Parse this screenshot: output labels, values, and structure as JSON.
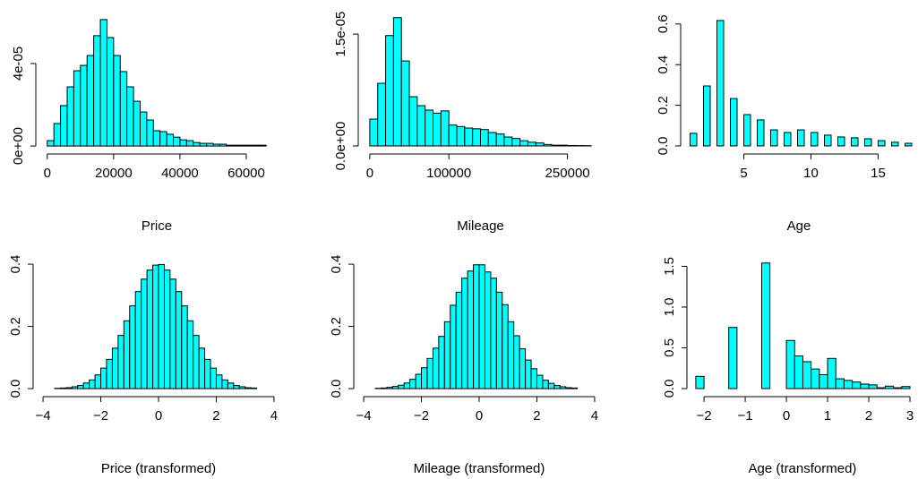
{
  "chart_data": [
    {
      "type": "histogram",
      "xlabel": "Price",
      "color": "#00ffff",
      "bins": [
        0,
        2000,
        4000,
        6000,
        8000,
        10000,
        12000,
        14000,
        16000,
        18000,
        20000,
        22000,
        24000,
        26000,
        28000,
        30000,
        32000,
        34000,
        36000,
        38000,
        40000,
        42000,
        44000,
        46000,
        48000,
        50000,
        52000,
        54000,
        56000,
        58000,
        60000,
        62000,
        64000,
        66000
      ],
      "values": [
        2.6e-06,
        1.09e-05,
        1.96e-05,
        2.87e-05,
        3.65e-05,
        3.91e-05,
        4.39e-05,
        5.35e-05,
        6.13e-05,
        5.26e-05,
        4.39e-05,
        3.61e-05,
        2.87e-05,
        2.17e-05,
        1.65e-05,
        1.26e-05,
        7.4e-06,
        7e-06,
        5.7e-06,
        4.3e-06,
        3e-06,
        2.6e-06,
        1.7e-06,
        1.3e-06,
        1.3e-06,
        9e-07,
        9e-07,
        4e-07,
        4e-07,
        4e-07,
        4e-07,
        4e-07,
        4e-07
      ],
      "xlim": [
        -2640,
        68640
      ],
      "xticks": [
        0,
        20000,
        40000,
        60000
      ],
      "ylim": [
        -3e-06,
        6.43e-05
      ],
      "yticks": [
        {
          "value": 0,
          "label": "0e+00"
        },
        {
          "value": 4e-05,
          "label": "4e-05"
        }
      ]
    },
    {
      "type": "histogram",
      "xlabel": "Mileage",
      "color": "#00ffff",
      "bins": [
        0,
        10000,
        20000,
        30000,
        40000,
        50000,
        60000,
        70000,
        80000,
        90000,
        100000,
        110000,
        120000,
        130000,
        140000,
        150000,
        160000,
        170000,
        180000,
        190000,
        200000,
        210000,
        220000,
        230000,
        240000,
        250000,
        260000,
        270000,
        280000
      ],
      "values": [
        3.6e-06,
        8.4e-06,
        1.48e-05,
        1.72e-05,
        1.14e-05,
        6.6e-06,
        5.4e-06,
        4.8e-06,
        4.4e-06,
        4.7e-06,
        2.8e-06,
        2.6e-06,
        2.4e-06,
        2.3e-06,
        2.2e-06,
        1.8e-06,
        1.6e-06,
        1.2e-06,
        1e-06,
        7e-07,
        5e-07,
        4e-07,
        2e-07,
        1e-07,
        1e-07,
        6e-08,
        5e-08,
        4e-08
      ],
      "xlim": [
        -11200,
        291200
      ],
      "xticks": [
        0,
        100000,
        250000
      ],
      "ylim": [
        -8.4e-07,
        1.777e-05
      ],
      "yticks": [
        {
          "value": 0,
          "label": "0.0e+00"
        },
        {
          "value": 1.5e-05,
          "label": "1.5e-05"
        }
      ]
    },
    {
      "type": "histogram",
      "xlabel": "Age",
      "color": "#00ffff",
      "bins": [
        1,
        1.5,
        2,
        2.5,
        3,
        3.5,
        4,
        4.5,
        5,
        5.5,
        6,
        6.5,
        7,
        7.5,
        8,
        8.5,
        9,
        9.5,
        10,
        10.5,
        11,
        11.5,
        12,
        12.5,
        13,
        13.5,
        14,
        14.5,
        15,
        15.5,
        16,
        16.5,
        17,
        17.5
      ],
      "values": [
        0.062,
        0,
        0.295,
        0,
        0.617,
        0,
        0.233,
        0,
        0.154,
        0,
        0.128,
        0,
        0.079,
        0,
        0.066,
        0,
        0.079,
        0,
        0.066,
        0,
        0.053,
        0,
        0.044,
        0,
        0.04,
        0,
        0.035,
        0,
        0.026,
        0,
        0.018,
        0,
        0.013
      ],
      "xlim": [
        0.5,
        17.7
      ],
      "xticks": [
        5,
        10,
        15
      ],
      "ylim": [
        -0.031,
        0.652
      ],
      "yticks": [
        {
          "value": 0,
          "label": "0.0"
        },
        {
          "value": 0.2,
          "label": "0.2"
        },
        {
          "value": 0.4,
          "label": "0.4"
        },
        {
          "value": 0.6,
          "label": "0.6"
        }
      ]
    },
    {
      "type": "histogram",
      "xlabel": "Price (transformed)",
      "color": "#00ffff",
      "bins": [
        -3.6,
        -3.4,
        -3.2,
        -3,
        -2.8,
        -2.6,
        -2.4,
        -2.2,
        -2,
        -1.8,
        -1.6,
        -1.4,
        -1.2,
        -1,
        -0.8,
        -0.6,
        -0.4,
        -0.2,
        0,
        0.2,
        0.4,
        0.6,
        0.8,
        1,
        1.2,
        1.4,
        1.6,
        1.8,
        2,
        2.2,
        2.4,
        2.6,
        2.8,
        3,
        3.2,
        3.4
      ],
      "values": [
        0.001,
        0.002,
        0.003,
        0.006,
        0.01,
        0.018,
        0.028,
        0.044,
        0.066,
        0.094,
        0.13,
        0.171,
        0.218,
        0.266,
        0.312,
        0.352,
        0.381,
        0.397,
        0.399,
        0.381,
        0.352,
        0.312,
        0.266,
        0.218,
        0.171,
        0.13,
        0.094,
        0.066,
        0.044,
        0.028,
        0.018,
        0.01,
        0.006,
        0.003,
        0.002
      ],
      "xlim": [
        -4.25,
        4.25
      ],
      "xticks": [
        {
          "value": -4,
          "label": "−4"
        },
        {
          "value": -2,
          "label": "−2"
        },
        0,
        2,
        4
      ],
      "ylim": [
        -0.02,
        0.429
      ],
      "yticks": [
        {
          "value": 0,
          "label": "0.0"
        },
        {
          "value": 0.2,
          "label": "0.2"
        },
        {
          "value": 0.4,
          "label": "0.4"
        }
      ]
    },
    {
      "type": "histogram",
      "xlabel": "Mileage (transformed)",
      "color": "#00ffff",
      "bins": [
        -3.6,
        -3.4,
        -3.2,
        -3,
        -2.8,
        -2.6,
        -2.4,
        -2.2,
        -2,
        -1.8,
        -1.6,
        -1.4,
        -1.2,
        -1,
        -0.8,
        -0.6,
        -0.4,
        -0.2,
        0,
        0.2,
        0.4,
        0.6,
        0.8,
        1,
        1.2,
        1.4,
        1.6,
        1.8,
        2,
        2.2,
        2.4,
        2.6,
        2.8,
        3,
        3.2,
        3.4
      ],
      "values": [
        0.001,
        0.002,
        0.004,
        0.007,
        0.011,
        0.018,
        0.03,
        0.046,
        0.067,
        0.097,
        0.13,
        0.168,
        0.215,
        0.268,
        0.31,
        0.355,
        0.378,
        0.398,
        0.398,
        0.375,
        0.355,
        0.31,
        0.27,
        0.215,
        0.17,
        0.128,
        0.092,
        0.064,
        0.043,
        0.027,
        0.017,
        0.01,
        0.006,
        0.003,
        0.002
      ],
      "xlim": [
        -4.25,
        4.25
      ],
      "xticks": [
        {
          "value": -4,
          "label": "−4"
        },
        {
          "value": -2,
          "label": "−2"
        },
        0,
        2,
        4
      ],
      "ylim": [
        -0.02,
        0.429
      ],
      "yticks": [
        {
          "value": 0,
          "label": "0.0"
        },
        {
          "value": 0.2,
          "label": "0.2"
        },
        {
          "value": 0.4,
          "label": "0.4"
        }
      ]
    },
    {
      "type": "histogram",
      "xlabel": "Age (transformed)",
      "color": "#00ffff",
      "bins": [
        -2.2,
        -2,
        -1.8,
        -1.6,
        -1.4,
        -1.2,
        -1,
        -0.8,
        -0.6,
        -0.4,
        -0.2,
        0,
        0.2,
        0.4,
        0.6,
        0.8,
        1,
        1.2,
        1.4,
        1.6,
        1.8,
        2,
        2.2,
        2.4,
        2.6,
        2.8,
        3
      ],
      "values": [
        0.15,
        0,
        0,
        0,
        0.75,
        0,
        0,
        0,
        1.54,
        0,
        0,
        0.59,
        0.4,
        0.33,
        0.24,
        0.17,
        0.37,
        0.12,
        0.1,
        0.08,
        0.055,
        0.045,
        0.01,
        0.03,
        0.01,
        0.025
      ],
      "xlim": [
        -2.35,
        3.13
      ],
      "xticks": [
        {
          "value": -2,
          "label": "−2"
        },
        {
          "value": -1,
          "label": "−1"
        },
        0,
        1,
        2,
        3
      ],
      "ylim": [
        -0.077,
        1.637
      ],
      "yticks": [
        {
          "value": 0,
          "label": "0.0"
        },
        {
          "value": 0.5,
          "label": "0.5"
        },
        {
          "value": 1,
          "label": "1.0"
        },
        {
          "value": 1.5,
          "label": "1.5"
        }
      ]
    }
  ]
}
